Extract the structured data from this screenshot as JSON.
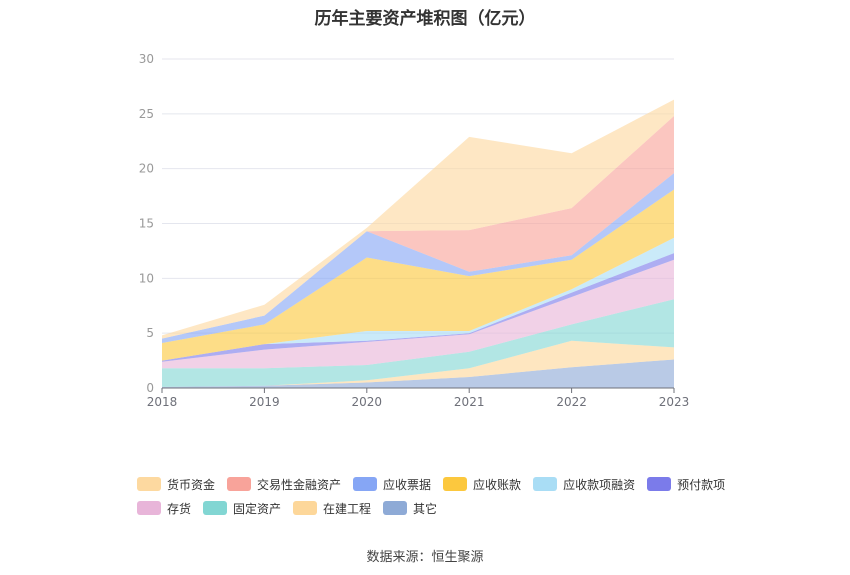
{
  "chart_data": {
    "type": "area",
    "stacked": true,
    "title": "历年主要资产堆积图（亿元）",
    "source": "数据来源：恒生聚源",
    "x": [
      "2018",
      "2019",
      "2020",
      "2021",
      "2022",
      "2023"
    ],
    "ylim": [
      0,
      30
    ],
    "yticks": [
      "0",
      "5",
      "10",
      "15",
      "20",
      "25",
      "30"
    ],
    "grid": true,
    "legend_position": "bottom",
    "series": [
      {
        "name": "其它",
        "color": "#8eaad6",
        "values": [
          0.1,
          0.2,
          0.5,
          1.0,
          1.9,
          2.6
        ]
      },
      {
        "name": "在建工程",
        "color": "#fdd79a",
        "values": [
          0.0,
          0.0,
          0.2,
          0.8,
          2.4,
          1.1
        ]
      },
      {
        "name": "固定资产",
        "color": "#82d6d3",
        "values": [
          1.7,
          1.6,
          1.4,
          1.5,
          1.5,
          4.4
        ]
      },
      {
        "name": "存货",
        "color": "#e8b5d9",
        "values": [
          0.6,
          1.7,
          2.1,
          1.6,
          2.5,
          3.6
        ]
      },
      {
        "name": "预付款项",
        "color": "#7b7bea",
        "values": [
          0.1,
          0.5,
          0.1,
          0.1,
          0.4,
          0.6
        ]
      },
      {
        "name": "应收款项融资",
        "color": "#a9ddf5",
        "values": [
          0.0,
          0.0,
          0.9,
          0.2,
          0.3,
          1.4
        ]
      },
      {
        "name": "应收账款",
        "color": "#fcc83e",
        "values": [
          1.6,
          1.8,
          6.7,
          5.0,
          2.7,
          4.4
        ]
      },
      {
        "name": "应收票据",
        "color": "#86a6f5",
        "values": [
          0.4,
          0.8,
          2.4,
          0.4,
          0.4,
          1.5
        ]
      },
      {
        "name": "交易性金融资产",
        "color": "#f8a39a",
        "values": [
          0.0,
          0.0,
          0.0,
          3.8,
          4.3,
          5.2
        ]
      },
      {
        "name": "货币资金",
        "color": "#fdd9a0",
        "values": [
          0.3,
          1.0,
          0.3,
          8.5,
          5.0,
          1.5
        ]
      }
    ]
  },
  "legend_rows": [
    [
      "货币资金",
      "交易性金融资产",
      "应收票据",
      "应收账款",
      "应收款项融资",
      "预付款项"
    ],
    [
      "存货",
      "固定资产",
      "在建工程",
      "其它"
    ]
  ]
}
